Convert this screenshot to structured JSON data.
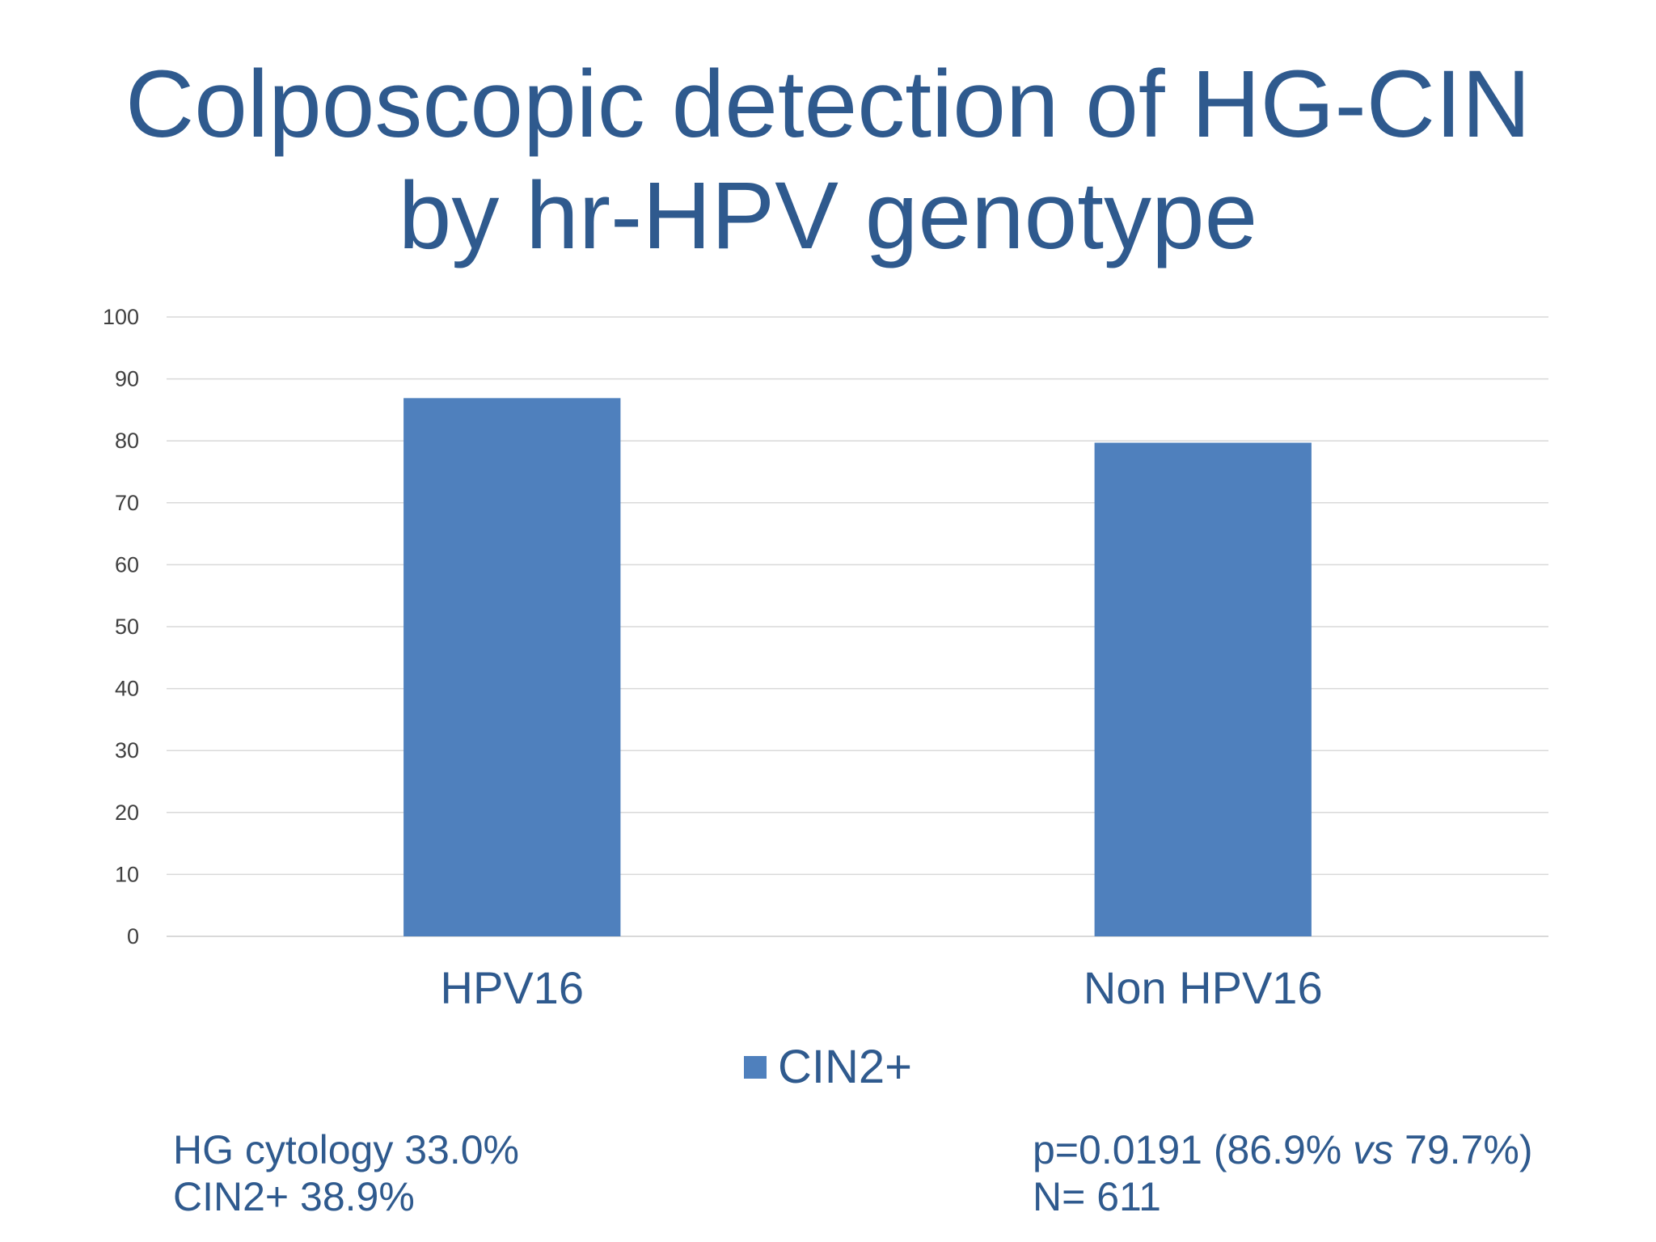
{
  "title": {
    "line1": "Colposcopic detection of HG-CIN",
    "line2": "by hr-HPV genotype"
  },
  "colors": {
    "title": "#2f5a8e",
    "bar": "#4f80bd",
    "grid": "#d9d9d9",
    "tick": "#404040"
  },
  "chart_data": {
    "type": "bar",
    "categories": [
      "HPV16",
      "Non HPV16"
    ],
    "series": [
      {
        "name": "CIN2+",
        "values": [
          86.9,
          79.7
        ]
      }
    ],
    "ylim": [
      0,
      100
    ],
    "yticks": [
      0,
      10,
      20,
      30,
      40,
      50,
      60,
      70,
      80,
      90,
      100
    ],
    "grid": true,
    "legend": "bottom-center"
  },
  "legend": {
    "label": "CIN2+"
  },
  "notes": {
    "left": [
      "HG cytology 33.0%",
      "CIN2+ 38.9%"
    ],
    "right": {
      "line1_prefix": "p=0.0191 (86.9% ",
      "line1_italic": "vs",
      "line1_suffix": " 79.7%)",
      "line2": "N= 611"
    }
  }
}
